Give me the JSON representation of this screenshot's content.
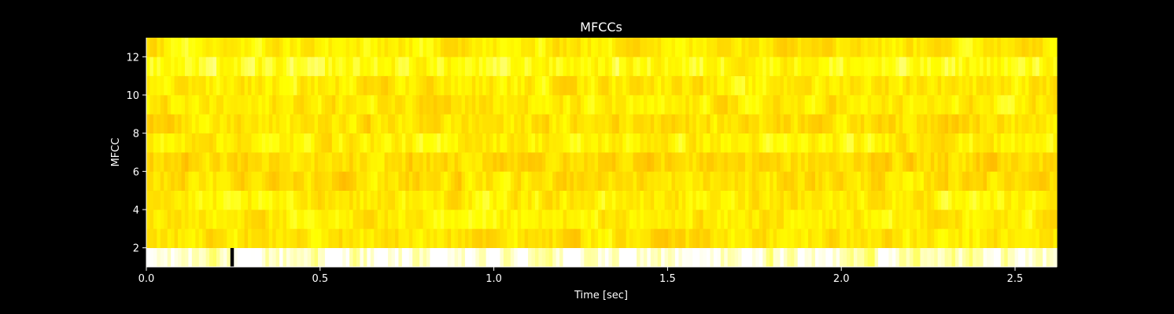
{
  "chart_data": {
    "type": "heatmap",
    "title": "MFCCs",
    "xlabel": "Time [sec]",
    "ylabel": "MFCC",
    "xlim": [
      0,
      2.62
    ],
    "ylim": [
      1,
      13
    ],
    "x_ticks": [
      0.0,
      0.5,
      1.0,
      1.5,
      2.0,
      2.5
    ],
    "x_tick_labels": [
      "0.0",
      "0.5",
      "1.0",
      "1.5",
      "2.0",
      "2.5"
    ],
    "y_ticks": [
      2,
      4,
      6,
      8,
      10,
      12
    ],
    "y_tick_labels": [
      "2",
      "4",
      "6",
      "8",
      "10",
      "12"
    ],
    "colormap": "hot",
    "colors": {
      "background": "#000000",
      "text": "#ffffff",
      "cmap_low": "#ff9900",
      "cmap_mid": "#ffff00",
      "cmap_high": "#ffffff",
      "min_marker": "#000000"
    },
    "grid": false,
    "legend": "none",
    "coefficients": 12,
    "frames": 260,
    "frame_seconds": 0.01008,
    "low_value_frame_seconds": 0.24,
    "row_mean_values": [
      0.93,
      0.46,
      0.48,
      0.5,
      0.42,
      0.38,
      0.52,
      0.44,
      0.47,
      0.49,
      0.6,
      0.5
    ]
  }
}
